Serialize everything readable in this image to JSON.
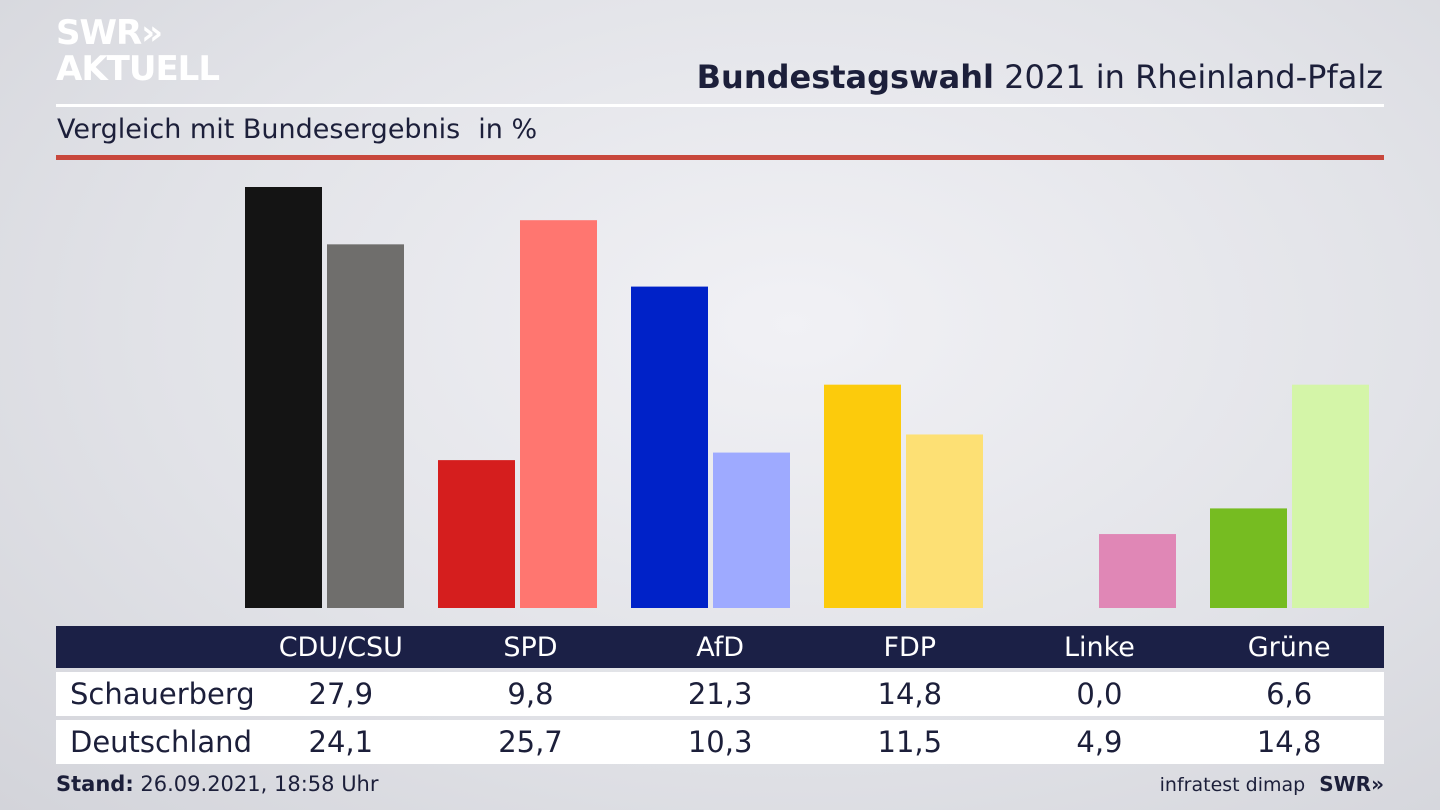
{
  "brand": {
    "logo_line1": "SWR»",
    "logo_line2": "AKTUELL",
    "footer_logo": "SWR»"
  },
  "header": {
    "title_bold": "Bundestagswahl",
    "title_rest": "2021 in Rheinland-Pfalz"
  },
  "subtitle": {
    "text": "Vergleich mit Bundesergebnis",
    "unit": "in %"
  },
  "footer": {
    "stand_label": "Stand:",
    "stand_value": "26.09.2021, 18:58 Uhr",
    "source": "infratest dimap"
  },
  "chart_data": {
    "type": "bar",
    "title": "Bundestagswahl 2021 in Rheinland-Pfalz",
    "categories": [
      "CDU/CSU",
      "SPD",
      "AfD",
      "FDP",
      "Linke",
      "Grüne"
    ],
    "series": [
      {
        "name": "Schauerberg",
        "values": [
          27.9,
          9.8,
          21.3,
          14.8,
          0.0,
          6.6
        ],
        "labels": [
          "27,9",
          "9,8",
          "21,3",
          "14,8",
          "0,0",
          "6,6"
        ],
        "colors": [
          "#141414",
          "#d51e1e",
          "#0022c8",
          "#fccb0c",
          "#e087b6",
          "#76bc21"
        ]
      },
      {
        "name": "Deutschland",
        "values": [
          24.1,
          25.7,
          10.3,
          11.5,
          4.9,
          14.8
        ],
        "labels": [
          "24,1",
          "25,7",
          "10,3",
          "11,5",
          "4,9",
          "14,8"
        ],
        "colors": [
          "#6f6e6c",
          "#ff7670",
          "#9eaaff",
          "#fde074",
          "#e087b6",
          "#d4f5a8"
        ]
      }
    ],
    "ylim": [
      0,
      27.9
    ],
    "legend": "table-below",
    "grid": false
  }
}
